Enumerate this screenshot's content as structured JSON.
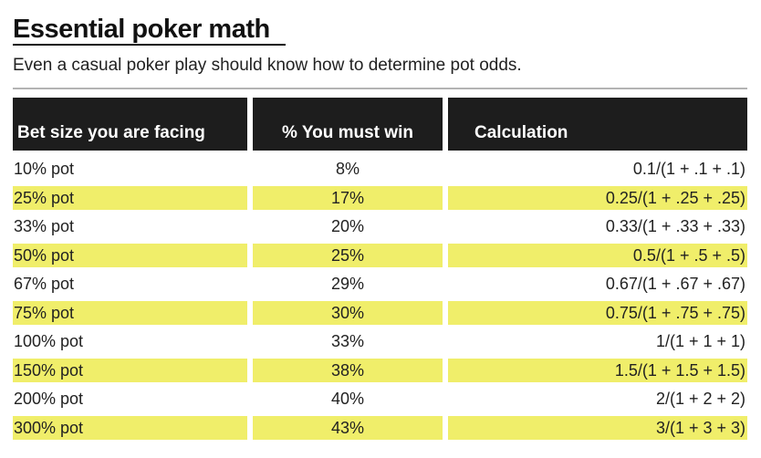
{
  "title": "Essential poker math",
  "subtitle": "Even a casual poker play should know how to determine pot odds.",
  "colors": {
    "header_bg": "#1d1d1d",
    "header_text": "#ffffff",
    "highlight": "#f0ee6a"
  },
  "table": {
    "headers": [
      "Bet size you are facing",
      "% You must win",
      "Calculation"
    ],
    "rows": [
      {
        "bet": "10% pot",
        "win": "8%",
        "calc": "0.1/(1 + .1 + .1)",
        "highlighted": false
      },
      {
        "bet": "25% pot",
        "win": "17%",
        "calc": "0.25/(1 + .25 + .25)",
        "highlighted": true
      },
      {
        "bet": "33% pot",
        "win": "20%",
        "calc": "0.33/(1 + .33 + .33)",
        "highlighted": false
      },
      {
        "bet": "50% pot",
        "win": "25%",
        "calc": "0.5/(1 + .5 + .5)",
        "highlighted": true
      },
      {
        "bet": "67% pot",
        "win": "29%",
        "calc": "0.67/(1 + .67 + .67)",
        "highlighted": false
      },
      {
        "bet": "75% pot",
        "win": "30%",
        "calc": "0.75/(1 + .75 + .75)",
        "highlighted": true
      },
      {
        "bet": "100% pot",
        "win": "33%",
        "calc": "1/(1 + 1 + 1)",
        "highlighted": false
      },
      {
        "bet": "150% pot",
        "win": "38%",
        "calc": "1.5/(1 + 1.5 + 1.5)",
        "highlighted": true
      },
      {
        "bet": "200% pot",
        "win": "40%",
        "calc": "2/(1 + 2 + 2)",
        "highlighted": false
      },
      {
        "bet": "300% pot",
        "win": "43%",
        "calc": "3/(1 + 3 + 3)",
        "highlighted": true
      }
    ]
  }
}
